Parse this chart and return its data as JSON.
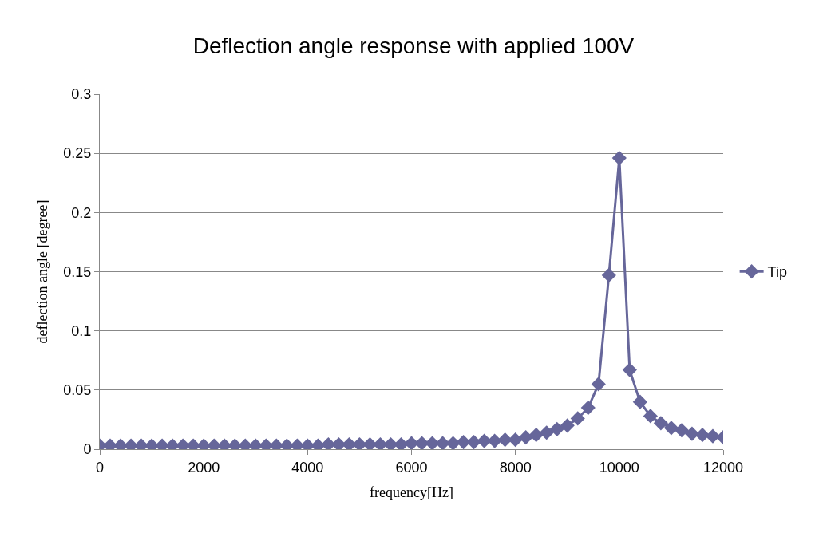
{
  "chart_data": {
    "type": "line",
    "title": "Deflection angle response with applied 100V",
    "xlabel": "frequency[Hz]",
    "ylabel": "deflection angle [degree]",
    "x": [
      0,
      200,
      400,
      600,
      800,
      1000,
      1200,
      1400,
      1600,
      1800,
      2000,
      2200,
      2400,
      2600,
      2800,
      3000,
      3200,
      3400,
      3600,
      3800,
      4000,
      4200,
      4400,
      4600,
      4800,
      5000,
      5200,
      5400,
      5600,
      5800,
      6000,
      6200,
      6400,
      6600,
      6800,
      7000,
      7200,
      7400,
      7600,
      7800,
      8000,
      8200,
      8400,
      8600,
      8800,
      9000,
      9200,
      9400,
      9600,
      9800,
      10000,
      10200,
      10400,
      10600,
      10800,
      11000,
      11200,
      11400,
      11600,
      11800,
      12000
    ],
    "series": [
      {
        "name": "Tip",
        "color": "#66669a",
        "values": [
          0.003,
          0.003,
          0.003,
          0.003,
          0.003,
          0.003,
          0.003,
          0.003,
          0.003,
          0.003,
          0.003,
          0.003,
          0.003,
          0.003,
          0.003,
          0.003,
          0.003,
          0.003,
          0.003,
          0.003,
          0.003,
          0.003,
          0.004,
          0.004,
          0.004,
          0.004,
          0.004,
          0.004,
          0.004,
          0.004,
          0.005,
          0.005,
          0.005,
          0.005,
          0.005,
          0.006,
          0.006,
          0.007,
          0.007,
          0.008,
          0.008,
          0.01,
          0.012,
          0.014,
          0.017,
          0.02,
          0.026,
          0.035,
          0.055,
          0.147,
          0.246,
          0.067,
          0.04,
          0.028,
          0.022,
          0.018,
          0.016,
          0.013,
          0.012,
          0.011,
          0.01
        ]
      }
    ],
    "xlim": [
      0,
      12000
    ],
    "xticks": [
      0,
      2000,
      4000,
      6000,
      8000,
      10000,
      12000
    ],
    "ylim": [
      0,
      0.3
    ],
    "yticks": [
      0,
      0.05,
      0.1,
      0.15,
      0.2,
      0.25,
      0.3
    ],
    "grid": "y",
    "legend": "right",
    "marker": "diamond",
    "line_style": "solid"
  }
}
